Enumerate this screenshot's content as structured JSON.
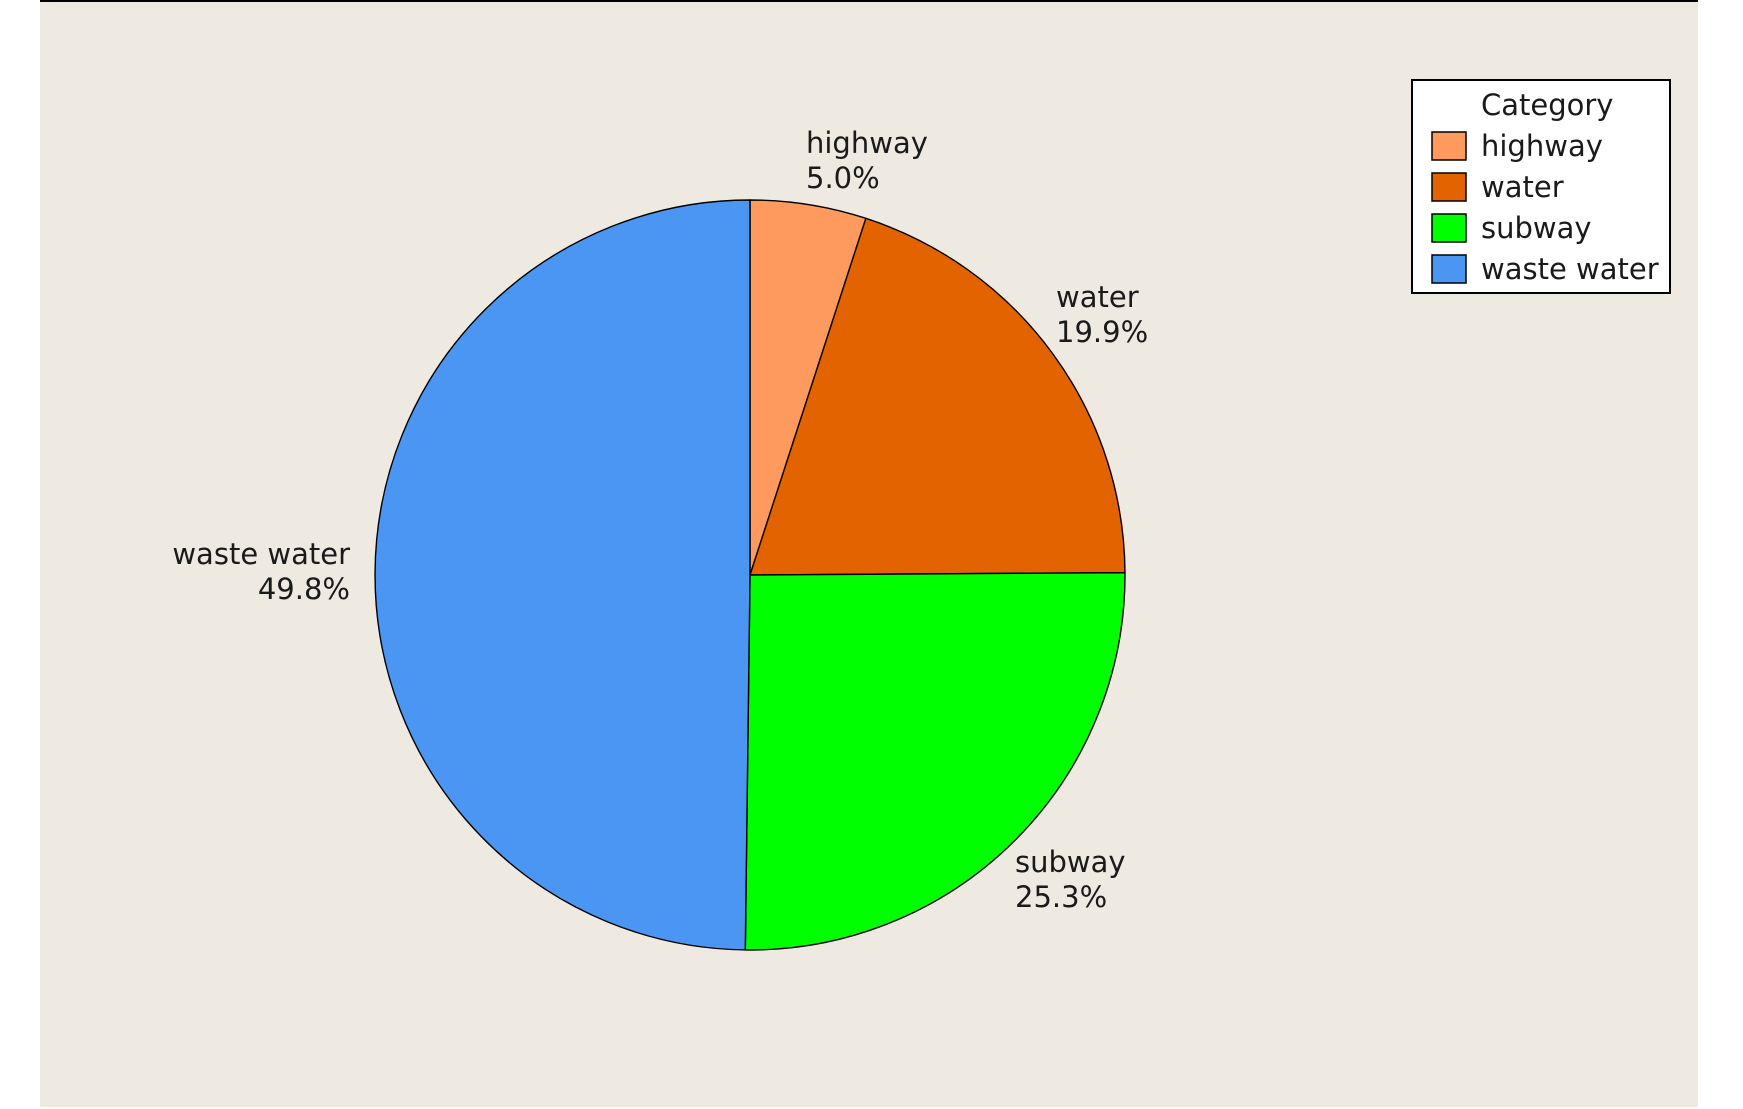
{
  "chart_data": {
    "type": "pie",
    "legend_title": "Category",
    "legend_position": "top-right",
    "slices": [
      {
        "name": "highway",
        "percent": 5.0,
        "label": "5.0%",
        "color": "#ff9a5e"
      },
      {
        "name": "water",
        "percent": 19.9,
        "label": "19.9%",
        "color": "#e36300"
      },
      {
        "name": "subway",
        "percent": 25.3,
        "label": "25.3%",
        "color": "#00ff00"
      },
      {
        "name": "waste water",
        "percent": 49.8,
        "label": "49.8%",
        "color": "#4b96f3"
      }
    ]
  }
}
